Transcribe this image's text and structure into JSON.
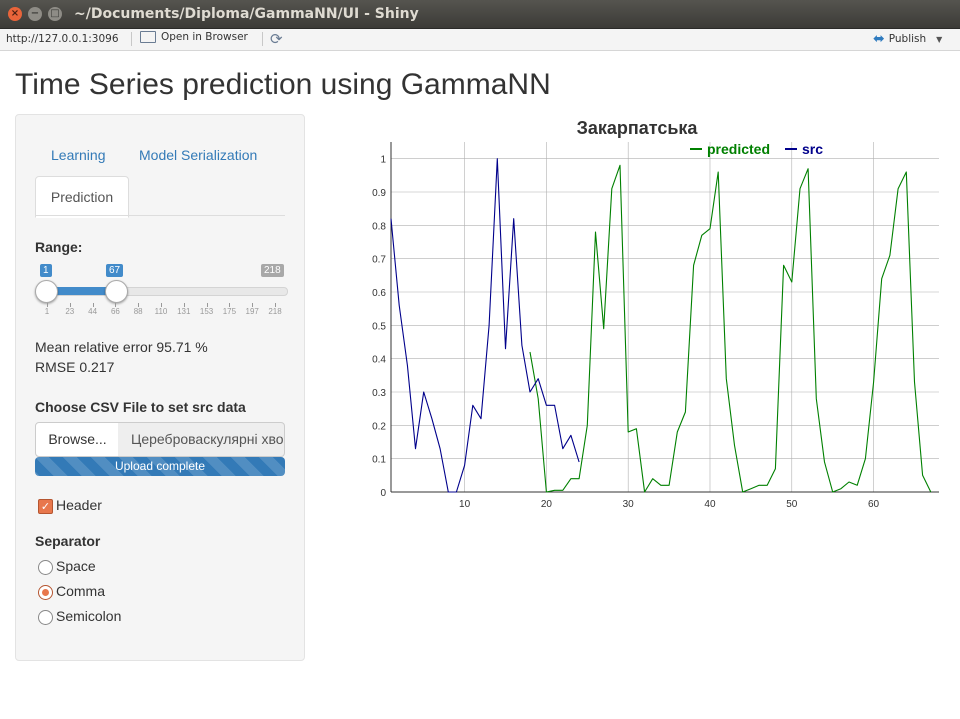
{
  "window": {
    "title": "~/Documents/Diploma/GammaNN/UI - Shiny"
  },
  "toolbar": {
    "url": "http://127.0.0.1:3096",
    "open_in_browser": "Open in Browser",
    "publish": "Publish"
  },
  "app": {
    "title": "Time Series prediction using GammaNN"
  },
  "tabs": [
    {
      "label": "Learning",
      "active": false
    },
    {
      "label": "Model Serialization",
      "active": false
    },
    {
      "label": "Prediction",
      "active": true
    }
  ],
  "range": {
    "label": "Range:",
    "min": 1,
    "max": 218,
    "from": 1,
    "to": 67,
    "min_label": "1",
    "to_label": "67",
    "max_label": "218",
    "ticks": [
      "1",
      "23",
      "44",
      "66",
      "88",
      "110",
      "131",
      "153",
      "175",
      "197",
      "218"
    ]
  },
  "stats": {
    "mre": "Mean relative error 95.71 %",
    "rmse": "RMSE 0.217"
  },
  "file": {
    "label": "Choose CSV File to set src data",
    "browse": "Browse...",
    "filename": "Цереброваскулярні хвороби.csv",
    "progress_text": "Upload complete",
    "progress": 1.0
  },
  "header_checkbox": {
    "label": "Header",
    "checked": true
  },
  "separator": {
    "label": "Separator",
    "options": [
      {
        "label": "Space",
        "selected": false
      },
      {
        "label": "Comma",
        "selected": true
      },
      {
        "label": "Semicolon",
        "selected": false
      }
    ]
  },
  "colors": {
    "predicted": "#008000",
    "src": "#00008b",
    "accent": "#428bca",
    "check": "#e8774c"
  },
  "chart_data": {
    "type": "line",
    "title": "Закарпатська",
    "legend_position": "top-right",
    "xlim": [
      1,
      68
    ],
    "ylim": [
      0,
      1.05
    ],
    "x_ticks": [
      10,
      20,
      30,
      40,
      50,
      60
    ],
    "y_ticks": [
      0,
      0.1,
      0.2,
      0.3,
      0.4,
      0.5,
      0.6,
      0.7,
      0.8,
      0.9,
      1
    ],
    "grid": true,
    "series": [
      {
        "name": "predicted",
        "color": "#008000",
        "x": [
          18,
          19,
          20,
          21,
          22,
          23,
          24,
          25,
          26,
          27,
          28,
          29,
          30,
          31,
          32,
          33,
          34,
          35,
          36,
          37,
          38,
          39,
          40,
          41,
          42,
          43,
          44,
          45,
          46,
          47,
          48,
          49,
          50,
          51,
          52,
          53,
          54,
          55,
          56,
          57,
          58,
          59,
          60,
          61,
          62,
          63,
          64,
          65,
          66,
          67
        ],
        "values": [
          0.42,
          0.28,
          0,
          0.005,
          0.005,
          0.04,
          0.04,
          0.2,
          0.78,
          0.49,
          0.91,
          0.98,
          0.18,
          0.19,
          0,
          0.04,
          0.02,
          0.02,
          0.18,
          0.24,
          0.68,
          0.77,
          0.79,
          0.96,
          0.34,
          0.14,
          0,
          0.01,
          0.02,
          0.02,
          0.07,
          0.68,
          0.63,
          0.91,
          0.97,
          0.28,
          0.09,
          0,
          0.01,
          0.03,
          0.02,
          0.1,
          0.33,
          0.64,
          0.71,
          0.91,
          0.96,
          0.33,
          0.05,
          0
        ]
      },
      {
        "name": "src",
        "color": "#00008b",
        "x": [
          1,
          2,
          3,
          4,
          5,
          6,
          7,
          8,
          9,
          10,
          11,
          12,
          13,
          14,
          15,
          16,
          17,
          18,
          19,
          20,
          21,
          22,
          23,
          24
        ],
        "values": [
          0.82,
          0.56,
          0.38,
          0.13,
          0.3,
          0.22,
          0.13,
          0,
          0,
          0.08,
          0.26,
          0.22,
          0.5,
          1.0,
          0.43,
          0.82,
          0.44,
          0.3,
          0.34,
          0.26,
          0.26,
          0.13,
          0.17,
          0.09
        ]
      }
    ]
  }
}
